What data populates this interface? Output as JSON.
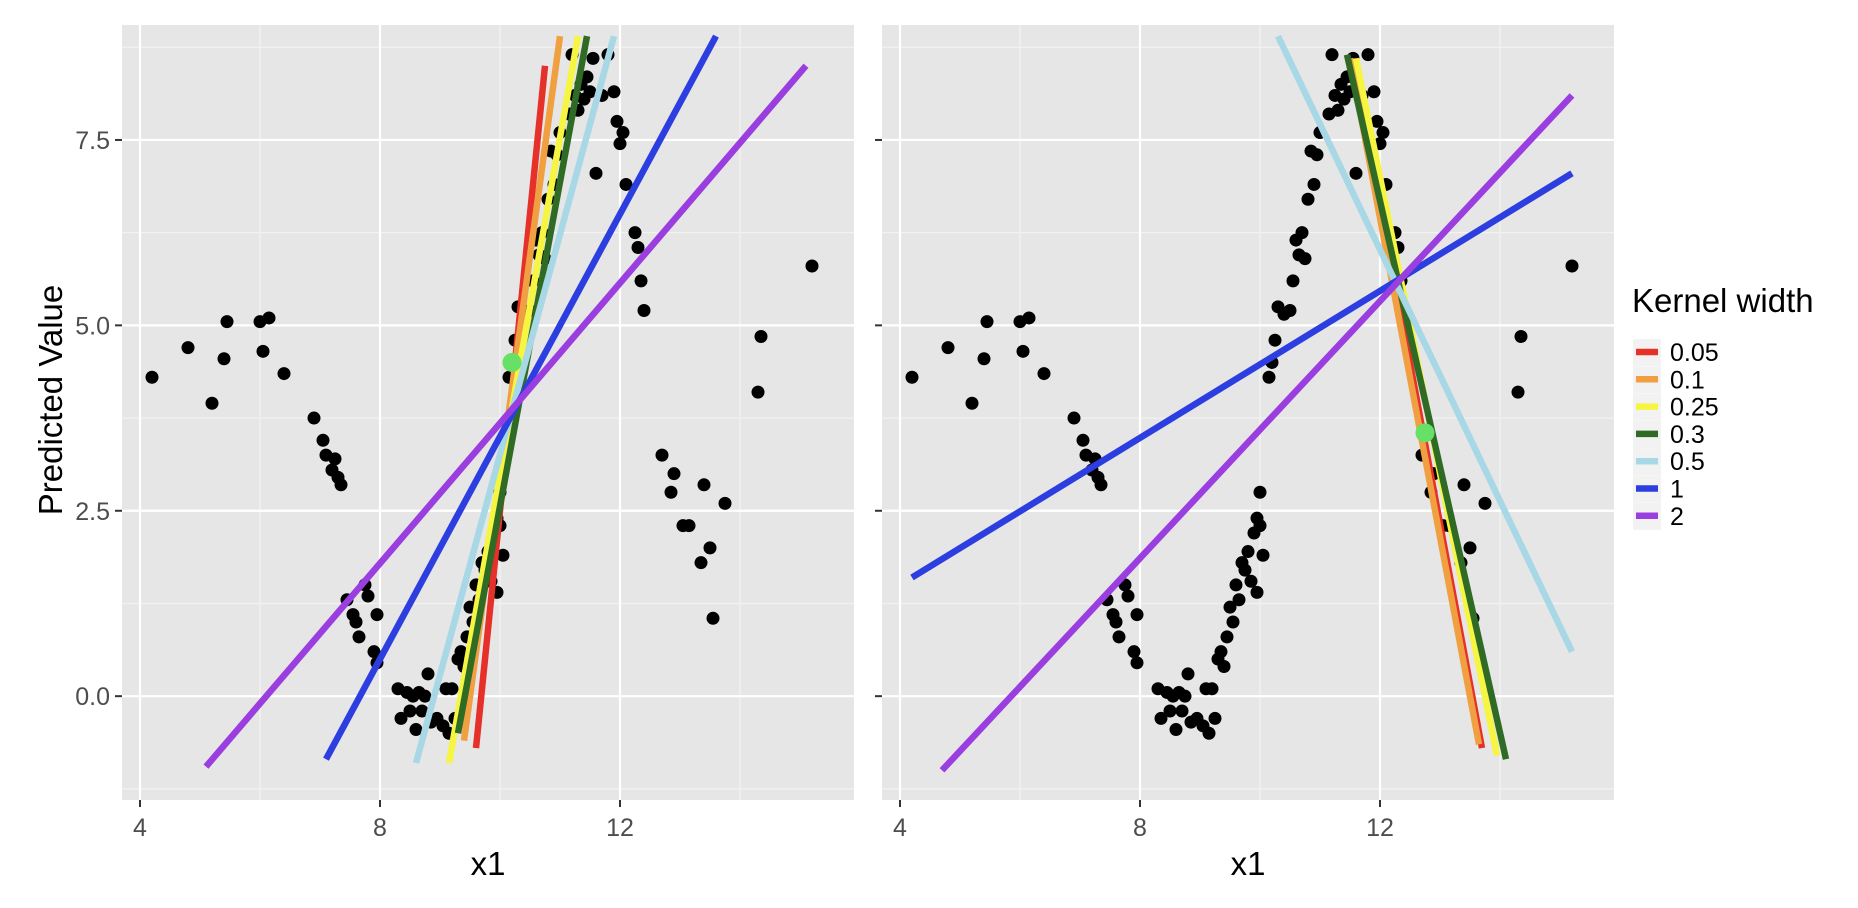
{
  "figure": {
    "ylabel": "Predicted Value",
    "legend": {
      "title": "Kernel width",
      "placement": "right"
    }
  },
  "chart_data": [
    {
      "type": "scatter",
      "panel": "left",
      "xlabel": "x1",
      "ylabel": "Predicted Value",
      "xlim": [
        3.7,
        15.9
      ],
      "ylim": [
        -1.4,
        9.05
      ],
      "xticks": [
        4,
        8,
        12
      ],
      "xtick_labels": [
        "4",
        "8",
        "12"
      ],
      "yticks": [
        0,
        2.5,
        5,
        7.5
      ],
      "ytick_labels": [
        "0.0",
        "2.5",
        "5.0",
        "7.5"
      ],
      "grid": true,
      "background": "#e6e6e6",
      "points": [
        [
          4.2,
          4.3
        ],
        [
          4.8,
          4.7
        ],
        [
          5.2,
          3.95
        ],
        [
          5.4,
          4.55
        ],
        [
          5.45,
          5.05
        ],
        [
          6.0,
          5.05
        ],
        [
          6.05,
          4.65
        ],
        [
          6.15,
          5.1
        ],
        [
          6.4,
          4.35
        ],
        [
          6.9,
          3.75
        ],
        [
          7.05,
          3.45
        ],
        [
          7.1,
          3.25
        ],
        [
          7.2,
          3.05
        ],
        [
          7.25,
          3.2
        ],
        [
          7.3,
          2.95
        ],
        [
          7.35,
          2.85
        ],
        [
          7.45,
          1.3
        ],
        [
          7.55,
          1.1
        ],
        [
          7.6,
          1.0
        ],
        [
          7.65,
          0.8
        ],
        [
          7.75,
          1.5
        ],
        [
          7.8,
          1.35
        ],
        [
          7.95,
          1.1
        ],
        [
          7.9,
          0.6
        ],
        [
          7.95,
          0.45
        ],
        [
          8.3,
          0.1
        ],
        [
          8.35,
          -0.3
        ],
        [
          8.45,
          0.05
        ],
        [
          8.5,
          -0.2
        ],
        [
          8.55,
          0.0
        ],
        [
          8.6,
          -0.45
        ],
        [
          8.65,
          0.05
        ],
        [
          8.7,
          -0.2
        ],
        [
          8.75,
          0.0
        ],
        [
          8.8,
          0.3
        ],
        [
          8.85,
          -0.35
        ],
        [
          8.95,
          -0.3
        ],
        [
          9.05,
          -0.4
        ],
        [
          9.1,
          0.1
        ],
        [
          9.15,
          -0.5
        ],
        [
          9.2,
          0.1
        ],
        [
          9.25,
          -0.3
        ],
        [
          9.3,
          0.5
        ],
        [
          9.35,
          0.6
        ],
        [
          9.4,
          0.4
        ],
        [
          9.45,
          0.8
        ],
        [
          9.5,
          1.2
        ],
        [
          9.55,
          1.0
        ],
        [
          9.6,
          1.5
        ],
        [
          9.65,
          1.3
        ],
        [
          9.7,
          1.8
        ],
        [
          9.75,
          1.7
        ],
        [
          9.8,
          1.95
        ],
        [
          9.85,
          1.55
        ],
        [
          9.9,
          2.2
        ],
        [
          9.95,
          1.4
        ],
        [
          9.95,
          2.4
        ],
        [
          10.0,
          2.3
        ],
        [
          10.0,
          2.75
        ],
        [
          10.05,
          1.9
        ],
        [
          10.15,
          4.3
        ],
        [
          10.2,
          4.5
        ],
        [
          10.25,
          4.8
        ],
        [
          10.3,
          5.25
        ],
        [
          10.4,
          5.15
        ],
        [
          10.5,
          5.2
        ],
        [
          10.55,
          5.6
        ],
        [
          10.6,
          6.15
        ],
        [
          10.65,
          5.95
        ],
        [
          10.7,
          6.25
        ],
        [
          10.75,
          5.9
        ],
        [
          10.8,
          6.7
        ],
        [
          10.85,
          7.35
        ],
        [
          10.9,
          6.9
        ],
        [
          10.95,
          7.3
        ],
        [
          11.0,
          7.6
        ],
        [
          11.15,
          7.85
        ],
        [
          11.2,
          8.65
        ],
        [
          11.25,
          8.1
        ],
        [
          11.3,
          7.9
        ],
        [
          11.35,
          8.25
        ],
        [
          11.4,
          8.05
        ],
        [
          11.45,
          8.35
        ],
        [
          11.5,
          8.15
        ],
        [
          11.55,
          8.6
        ],
        [
          11.6,
          7.05
        ],
        [
          11.7,
          8.1
        ],
        [
          11.8,
          8.65
        ],
        [
          11.9,
          8.15
        ],
        [
          11.95,
          7.75
        ],
        [
          12.0,
          7.45
        ],
        [
          12.05,
          7.6
        ],
        [
          12.1,
          6.9
        ],
        [
          12.25,
          6.25
        ],
        [
          12.3,
          6.05
        ],
        [
          12.35,
          5.6
        ],
        [
          12.4,
          5.2
        ],
        [
          12.7,
          3.25
        ],
        [
          12.85,
          2.75
        ],
        [
          12.9,
          3.0
        ],
        [
          13.05,
          2.3
        ],
        [
          13.15,
          2.3
        ],
        [
          13.35,
          1.8
        ],
        [
          13.5,
          2.0
        ],
        [
          13.55,
          1.05
        ],
        [
          13.4,
          2.85
        ],
        [
          13.75,
          2.6
        ],
        [
          14.3,
          4.1
        ],
        [
          14.35,
          4.85
        ],
        [
          15.2,
          5.8
        ]
      ],
      "highlight_point": [
        10.2,
        4.5
      ],
      "series": [
        {
          "name": "0.05",
          "color": "#e6302a",
          "segment": [
            [
              9.6,
              -0.7
            ],
            [
              10.75,
              8.5
            ]
          ]
        },
        {
          "name": "0.1",
          "color": "#f0a040",
          "segment": [
            [
              9.4,
              -0.6
            ],
            [
              11.0,
              8.9
            ]
          ]
        },
        {
          "name": "0.25",
          "color": "#f5f542",
          "segment": [
            [
              9.15,
              -0.9
            ],
            [
              11.3,
              8.9
            ]
          ]
        },
        {
          "name": "0.3",
          "color": "#2f6b25",
          "segment": [
            [
              9.3,
              -0.5
            ],
            [
              11.45,
              8.9
            ]
          ]
        },
        {
          "name": "0.5",
          "color": "#a8d8e6",
          "segment": [
            [
              8.6,
              -0.9
            ],
            [
              11.9,
              8.9
            ]
          ]
        },
        {
          "name": "1",
          "color": "#2d3ee0",
          "segment": [
            [
              7.1,
              -0.85
            ],
            [
              13.6,
              8.9
            ]
          ]
        },
        {
          "name": "2",
          "color": "#9b3ee0",
          "segment": [
            [
              5.1,
              -0.95
            ],
            [
              15.1,
              8.5
            ]
          ]
        }
      ]
    },
    {
      "type": "scatter",
      "panel": "right",
      "xlabel": "x1",
      "ylabel": "",
      "xlim": [
        3.7,
        15.9
      ],
      "ylim": [
        -1.4,
        9.05
      ],
      "xticks": [
        4,
        8,
        12
      ],
      "xtick_labels": [
        "4",
        "8",
        "12"
      ],
      "yticks": [
        0,
        2.5,
        5,
        7.5
      ],
      "ytick_labels": [
        "",
        "",
        "",
        ""
      ],
      "grid": true,
      "background": "#e6e6e6",
      "points": [
        [
          4.2,
          4.3
        ],
        [
          4.8,
          4.7
        ],
        [
          5.2,
          3.95
        ],
        [
          5.4,
          4.55
        ],
        [
          5.45,
          5.05
        ],
        [
          6.0,
          5.05
        ],
        [
          6.05,
          4.65
        ],
        [
          6.15,
          5.1
        ],
        [
          6.4,
          4.35
        ],
        [
          6.9,
          3.75
        ],
        [
          7.05,
          3.45
        ],
        [
          7.1,
          3.25
        ],
        [
          7.2,
          3.05
        ],
        [
          7.25,
          3.2
        ],
        [
          7.3,
          2.95
        ],
        [
          7.35,
          2.85
        ],
        [
          7.45,
          1.3
        ],
        [
          7.55,
          1.1
        ],
        [
          7.6,
          1.0
        ],
        [
          7.65,
          0.8
        ],
        [
          7.75,
          1.5
        ],
        [
          7.8,
          1.35
        ],
        [
          7.95,
          1.1
        ],
        [
          7.9,
          0.6
        ],
        [
          7.95,
          0.45
        ],
        [
          8.3,
          0.1
        ],
        [
          8.35,
          -0.3
        ],
        [
          8.45,
          0.05
        ],
        [
          8.5,
          -0.2
        ],
        [
          8.55,
          0.0
        ],
        [
          8.6,
          -0.45
        ],
        [
          8.65,
          0.05
        ],
        [
          8.7,
          -0.2
        ],
        [
          8.75,
          0.0
        ],
        [
          8.8,
          0.3
        ],
        [
          8.85,
          -0.35
        ],
        [
          8.95,
          -0.3
        ],
        [
          9.05,
          -0.4
        ],
        [
          9.1,
          0.1
        ],
        [
          9.15,
          -0.5
        ],
        [
          9.2,
          0.1
        ],
        [
          9.25,
          -0.3
        ],
        [
          9.3,
          0.5
        ],
        [
          9.35,
          0.6
        ],
        [
          9.4,
          0.4
        ],
        [
          9.45,
          0.8
        ],
        [
          9.5,
          1.2
        ],
        [
          9.55,
          1.0
        ],
        [
          9.6,
          1.5
        ],
        [
          9.65,
          1.3
        ],
        [
          9.7,
          1.8
        ],
        [
          9.75,
          1.7
        ],
        [
          9.8,
          1.95
        ],
        [
          9.85,
          1.55
        ],
        [
          9.9,
          2.2
        ],
        [
          9.95,
          1.4
        ],
        [
          9.95,
          2.4
        ],
        [
          10.0,
          2.3
        ],
        [
          10.0,
          2.75
        ],
        [
          10.05,
          1.9
        ],
        [
          10.15,
          4.3
        ],
        [
          10.2,
          4.5
        ],
        [
          10.25,
          4.8
        ],
        [
          10.3,
          5.25
        ],
        [
          10.4,
          5.15
        ],
        [
          10.5,
          5.2
        ],
        [
          10.55,
          5.6
        ],
        [
          10.6,
          6.15
        ],
        [
          10.65,
          5.95
        ],
        [
          10.7,
          6.25
        ],
        [
          10.75,
          5.9
        ],
        [
          10.8,
          6.7
        ],
        [
          10.85,
          7.35
        ],
        [
          10.9,
          6.9
        ],
        [
          10.95,
          7.3
        ],
        [
          11.0,
          7.6
        ],
        [
          11.15,
          7.85
        ],
        [
          11.2,
          8.65
        ],
        [
          11.25,
          8.1
        ],
        [
          11.3,
          7.9
        ],
        [
          11.35,
          8.25
        ],
        [
          11.4,
          8.05
        ],
        [
          11.45,
          8.35
        ],
        [
          11.5,
          8.15
        ],
        [
          11.55,
          8.6
        ],
        [
          11.6,
          7.05
        ],
        [
          11.7,
          8.1
        ],
        [
          11.8,
          8.65
        ],
        [
          11.9,
          8.15
        ],
        [
          11.95,
          7.75
        ],
        [
          12.0,
          7.45
        ],
        [
          12.05,
          7.6
        ],
        [
          12.1,
          6.9
        ],
        [
          12.25,
          6.25
        ],
        [
          12.3,
          6.05
        ],
        [
          12.35,
          5.6
        ],
        [
          12.4,
          5.2
        ],
        [
          12.7,
          3.25
        ],
        [
          12.85,
          2.75
        ],
        [
          12.9,
          3.0
        ],
        [
          13.05,
          2.3
        ],
        [
          13.15,
          2.3
        ],
        [
          13.35,
          1.8
        ],
        [
          13.5,
          2.0
        ],
        [
          13.55,
          1.05
        ],
        [
          13.4,
          2.85
        ],
        [
          13.75,
          2.6
        ],
        [
          14.3,
          4.1
        ],
        [
          14.35,
          4.85
        ],
        [
          15.2,
          5.8
        ]
      ],
      "highlight_point": [
        12.75,
        3.55
      ],
      "series": [
        {
          "name": "0.05",
          "color": "#e6302a",
          "segment": [
            [
              11.55,
              8.6
            ],
            [
              13.7,
              -0.7
            ]
          ]
        },
        {
          "name": "0.1",
          "color": "#f0a040",
          "segment": [
            [
              11.5,
              8.6
            ],
            [
              13.65,
              -0.65
            ]
          ]
        },
        {
          "name": "0.25",
          "color": "#f5f542",
          "segment": [
            [
              11.6,
              8.6
            ],
            [
              13.95,
              -0.8
            ]
          ]
        },
        {
          "name": "0.3",
          "color": "#2f6b25",
          "segment": [
            [
              11.45,
              8.65
            ],
            [
              14.1,
              -0.85
            ]
          ]
        },
        {
          "name": "0.5",
          "color": "#a8d8e6",
          "segment": [
            [
              10.3,
              8.9
            ],
            [
              15.2,
              0.6
            ]
          ]
        },
        {
          "name": "1",
          "color": "#2d3ee0",
          "segment": [
            [
              4.2,
              1.6
            ],
            [
              15.2,
              7.05
            ]
          ]
        },
        {
          "name": "2",
          "color": "#9b3ee0",
          "segment": [
            [
              4.7,
              -1.0
            ],
            [
              15.2,
              8.1
            ]
          ]
        }
      ]
    }
  ]
}
